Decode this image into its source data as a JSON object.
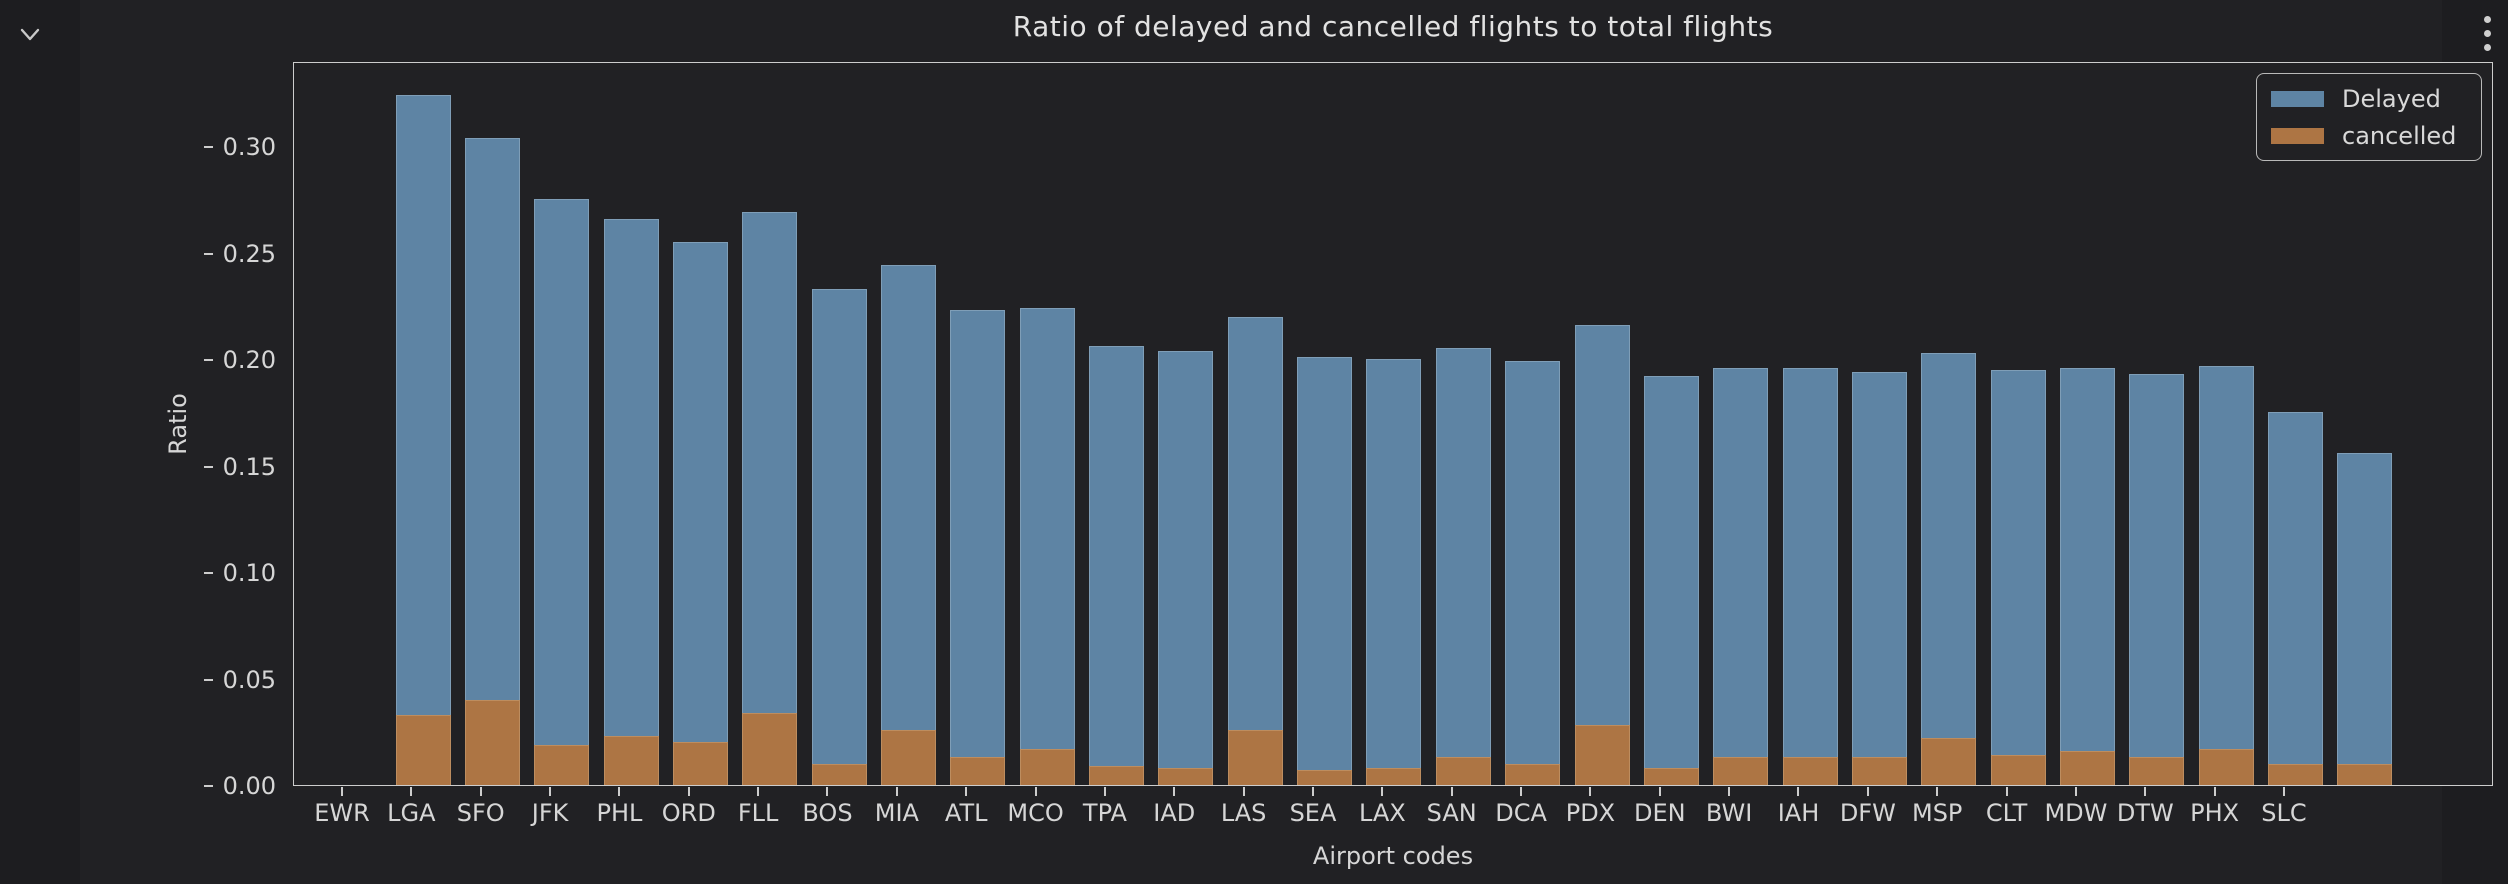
{
  "page": {
    "collapse_icon": "chevron-down",
    "menu_icon": "vertical-ellipsis"
  },
  "colors": {
    "delayed": "#5e84a4",
    "cancelled": "#ad7544",
    "figure_bg": "#212124",
    "page_bg": "#1d1d20",
    "axis": "#cdcdcd",
    "text": "#d6d6d6"
  },
  "chart_data": {
    "type": "bar",
    "mode": "overlay",
    "title": "Ratio of delayed and cancelled flights to total flights",
    "xlabel": "Airport codes",
    "ylabel": "Ratio",
    "ylim": [
      0,
      0.34
    ],
    "yticks": [
      "0.00",
      "0.05",
      "0.10",
      "0.15",
      "0.20",
      "0.25",
      "0.30"
    ],
    "grid": false,
    "legend_position": "upper right",
    "legend": [
      "Delayed",
      "cancelled"
    ],
    "categories": [
      "EWR",
      "LGA",
      "SFO",
      "JFK",
      "PHL",
      "ORD",
      "FLL",
      "BOS",
      "MIA",
      "ATL",
      "MCO",
      "TPA",
      "IAD",
      "LAS",
      "SEA",
      "LAX",
      "SAN",
      "DCA",
      "PDX",
      "DEN",
      "BWI",
      "IAH",
      "DFW",
      "MSP",
      "CLT",
      "MDW",
      "DTW",
      "PHX",
      "SLC"
    ],
    "series": [
      {
        "name": "Delayed",
        "color": "#5e84a4",
        "values": [
          0.324,
          0.304,
          0.275,
          0.266,
          0.255,
          0.269,
          0.233,
          0.244,
          0.223,
          0.224,
          0.206,
          0.204,
          0.22,
          0.201,
          0.2,
          0.205,
          0.199,
          0.216,
          0.192,
          0.196,
          0.196,
          0.194,
          0.203,
          0.195,
          0.196,
          0.193,
          0.197,
          0.175,
          0.156
        ]
      },
      {
        "name": "cancelled",
        "color": "#ad7544",
        "values": [
          0.033,
          0.04,
          0.019,
          0.023,
          0.02,
          0.034,
          0.01,
          0.026,
          0.013,
          0.017,
          0.009,
          0.008,
          0.026,
          0.007,
          0.008,
          0.013,
          0.01,
          0.028,
          0.008,
          0.013,
          0.013,
          0.013,
          0.022,
          0.014,
          0.016,
          0.013,
          0.017,
          0.01,
          0.01
        ]
      }
    ]
  }
}
